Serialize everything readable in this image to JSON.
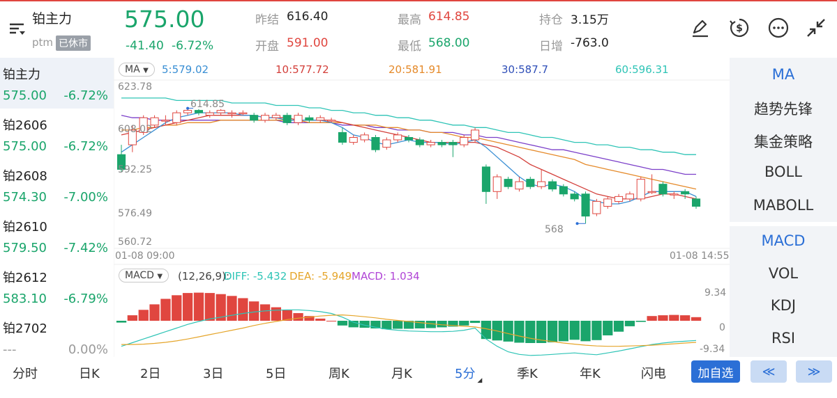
{
  "header": {
    "title": "铂主力",
    "sub": "ptm",
    "status_badge": "已休市",
    "price": "575.00",
    "change": "-41.40",
    "change_pct": "-6.72%",
    "stats": {
      "prev_close_label": "昨结",
      "prev_close": "616.40",
      "open_label": "开盘",
      "open": "591.00",
      "high_label": "最高",
      "high": "614.85",
      "low_label": "最低",
      "low": "568.00",
      "position_label": "持仓",
      "position": "3.15万",
      "daily_inc_label": "日增",
      "daily_inc": "-763.0"
    }
  },
  "contracts": [
    {
      "name": "铂主力",
      "price": "575.00",
      "pct": "-6.72%",
      "color": "green"
    },
    {
      "name": "铂2606",
      "price": "575.00",
      "pct": "-6.72%",
      "color": "green"
    },
    {
      "name": "铂2608",
      "price": "574.30",
      "pct": "-7.00%",
      "color": "green"
    },
    {
      "name": "铂2610",
      "price": "579.50",
      "pct": "-7.42%",
      "color": "green"
    },
    {
      "name": "铂2612",
      "price": "583.10",
      "pct": "-6.79%",
      "color": "green"
    },
    {
      "name": "铂2702",
      "price": "---",
      "pct": "0.00%",
      "color": "grey"
    }
  ],
  "ma_bar": {
    "selector": "MA",
    "ma5": "5:579.02",
    "ma10": "10:577.72",
    "ma20": "20:581.91",
    "ma30": "30:587.7",
    "ma60": "60:596.31"
  },
  "price_axis": [
    "623.78",
    "608.02",
    "592.25",
    "576.49",
    "560.72"
  ],
  "high_marker": "614.85",
  "low_marker": "568",
  "time_start": "01-08 09:00",
  "time_end": "01-08 14:55",
  "macd_bar": {
    "selector": "MACD",
    "params": "(12,26,9):",
    "diff": "DIFF: -5.432",
    "dea": "DEA: -5.949",
    "macd": "MACD: 1.034"
  },
  "macd_axis": [
    "9.34",
    "0",
    "-9.34"
  ],
  "indicators_main": [
    "MA",
    "趋势先锋",
    "集金策略",
    "BOLL",
    "MABOLL"
  ],
  "indicators_sub": [
    "MACD",
    "VOL",
    "KDJ",
    "RSI"
  ],
  "tabs": [
    "分时",
    "日K",
    "2日",
    "3日",
    "5日",
    "周K",
    "月K",
    "5分",
    "季K",
    "年K",
    "闪电"
  ],
  "add_watch": "加自选",
  "nav_prev": "≪",
  "nav_next": "≫",
  "colors": {
    "up": "#e0463f",
    "down": "#1aa56b",
    "accent": "#2b6fd6"
  },
  "chart_data": {
    "type": "candlestick",
    "ylim": [
      560.72,
      623.78
    ],
    "candles": [
      {
        "o": 596,
        "c": 590,
        "h": 600,
        "l": 589
      },
      {
        "o": 600,
        "c": 606,
        "h": 608,
        "l": 597
      },
      {
        "o": 605,
        "c": 611,
        "h": 612,
        "l": 604
      },
      {
        "o": 608,
        "c": 611,
        "h": 612,
        "l": 607
      },
      {
        "o": 610,
        "c": 610,
        "h": 612,
        "l": 608
      },
      {
        "o": 609,
        "c": 613,
        "h": 614,
        "l": 608
      },
      {
        "o": 613,
        "c": 614,
        "h": 614.85,
        "l": 612
      },
      {
        "o": 614,
        "c": 613,
        "h": 614.5,
        "l": 612
      },
      {
        "o": 612,
        "c": 613,
        "h": 614,
        "l": 611
      },
      {
        "o": 613,
        "c": 614,
        "h": 614.5,
        "l": 612
      },
      {
        "o": 613,
        "c": 613,
        "h": 614,
        "l": 611
      },
      {
        "o": 613,
        "c": 613,
        "h": 614,
        "l": 612
      },
      {
        "o": 612,
        "c": 610,
        "h": 613,
        "l": 609
      },
      {
        "o": 610,
        "c": 612,
        "h": 613,
        "l": 609
      },
      {
        "o": 611,
        "c": 612,
        "h": 613,
        "l": 610
      },
      {
        "o": 612,
        "c": 609,
        "h": 613,
        "l": 608
      },
      {
        "o": 609,
        "c": 612,
        "h": 613,
        "l": 608
      },
      {
        "o": 611,
        "c": 610,
        "h": 612,
        "l": 609
      },
      {
        "o": 610,
        "c": 611,
        "h": 612,
        "l": 609
      },
      {
        "o": 610,
        "c": 610,
        "h": 611,
        "l": 609
      },
      {
        "o": 605,
        "c": 601,
        "h": 607,
        "l": 600
      },
      {
        "o": 601,
        "c": 603,
        "h": 604,
        "l": 600
      },
      {
        "o": 602,
        "c": 604,
        "h": 605,
        "l": 601
      },
      {
        "o": 603,
        "c": 598,
        "h": 604,
        "l": 597
      },
      {
        "o": 599,
        "c": 602,
        "h": 603,
        "l": 598
      },
      {
        "o": 602,
        "c": 604,
        "h": 605,
        "l": 601
      },
      {
        "o": 603,
        "c": 602,
        "h": 604,
        "l": 601
      },
      {
        "o": 602,
        "c": 600,
        "h": 603,
        "l": 599
      },
      {
        "o": 600,
        "c": 601,
        "h": 602,
        "l": 599
      },
      {
        "o": 601,
        "c": 600,
        "h": 602,
        "l": 599
      },
      {
        "o": 601,
        "c": 600,
        "h": 602,
        "l": 595
      },
      {
        "o": 600,
        "c": 603,
        "h": 604,
        "l": 599
      },
      {
        "o": 602,
        "c": 606,
        "h": 607,
        "l": 601
      },
      {
        "o": 591,
        "c": 581,
        "h": 592,
        "l": 576
      },
      {
        "o": 581,
        "c": 587,
        "h": 588,
        "l": 578
      },
      {
        "o": 586,
        "c": 583,
        "h": 587,
        "l": 582
      },
      {
        "o": 582,
        "c": 585,
        "h": 587,
        "l": 581
      },
      {
        "o": 586,
        "c": 583,
        "h": 587,
        "l": 582
      },
      {
        "o": 583,
        "c": 585,
        "h": 590,
        "l": 582
      },
      {
        "o": 585,
        "c": 582,
        "h": 586,
        "l": 581
      },
      {
        "o": 583,
        "c": 580,
        "h": 584,
        "l": 579
      },
      {
        "o": 580,
        "c": 578,
        "h": 581,
        "l": 577
      },
      {
        "o": 580,
        "c": 571,
        "h": 581,
        "l": 568
      },
      {
        "o": 572,
        "c": 577,
        "h": 578,
        "l": 571
      },
      {
        "o": 575,
        "c": 578,
        "h": 579,
        "l": 574
      },
      {
        "o": 577,
        "c": 579,
        "h": 580,
        "l": 576
      },
      {
        "o": 578,
        "c": 580,
        "h": 581,
        "l": 577
      },
      {
        "o": 578,
        "c": 586,
        "h": 587,
        "l": 577
      },
      {
        "o": 581,
        "c": 581,
        "h": 588,
        "l": 580
      },
      {
        "o": 584,
        "c": 580,
        "h": 585,
        "l": 579
      },
      {
        "o": 580,
        "c": 580,
        "h": 581,
        "l": 578
      },
      {
        "o": 581,
        "c": 580,
        "h": 582,
        "l": 578
      },
      {
        "o": 578,
        "c": 575,
        "h": 579,
        "l": 574
      }
    ],
    "ma5": [
      597,
      600,
      603,
      606,
      609,
      611,
      612,
      613,
      613,
      613,
      613,
      612,
      612,
      611,
      611,
      610,
      610,
      610,
      610,
      609,
      607,
      604,
      603,
      601,
      600,
      601,
      602,
      601,
      601,
      601,
      600,
      601,
      602,
      599,
      595,
      591,
      587,
      584,
      583,
      584,
      583,
      581,
      578,
      577,
      576,
      576,
      577,
      579,
      581,
      581,
      581,
      581,
      579
    ],
    "ma10": [
      604,
      605,
      606,
      607,
      608,
      609,
      610,
      611,
      612,
      612,
      612,
      612,
      612,
      611,
      611,
      611,
      610,
      610,
      610,
      610,
      609,
      608,
      607,
      606,
      605,
      604,
      603,
      602,
      601,
      601,
      601,
      601,
      601,
      600,
      599,
      597,
      595,
      592,
      590,
      588,
      586,
      584,
      582,
      580,
      579,
      578,
      578,
      578,
      579,
      580,
      580,
      579,
      578
    ],
    "ma20": [
      606,
      606,
      607,
      607,
      608,
      608,
      609,
      609,
      609,
      610,
      610,
      610,
      610,
      610,
      610,
      610,
      610,
      609,
      609,
      609,
      609,
      608,
      608,
      608,
      607,
      607,
      606,
      606,
      605,
      605,
      604,
      603,
      603,
      602,
      601,
      600,
      599,
      598,
      597,
      596,
      595,
      594,
      592,
      591,
      590,
      589,
      588,
      587,
      586,
      585,
      584,
      583,
      582
    ],
    "ma30": [
      612,
      611,
      611,
      610,
      610,
      610,
      610,
      610,
      610,
      610,
      610,
      610,
      610,
      610,
      610,
      609,
      609,
      609,
      609,
      609,
      608,
      608,
      608,
      607,
      607,
      606,
      606,
      606,
      605,
      605,
      605,
      604,
      604,
      603,
      603,
      602,
      601,
      600,
      599,
      598,
      598,
      597,
      596,
      595,
      594,
      593,
      592,
      591,
      590,
      590,
      589,
      588,
      588
    ],
    "ma60": [
      619,
      619,
      619,
      619,
      619,
      618,
      618,
      618,
      618,
      618,
      617,
      617,
      617,
      617,
      616,
      616,
      616,
      615,
      615,
      614,
      614,
      613,
      613,
      612,
      612,
      611,
      611,
      610,
      610,
      609,
      608,
      608,
      607,
      607,
      606,
      605,
      605,
      604,
      603,
      603,
      602,
      601,
      601,
      600,
      600,
      599,
      599,
      598,
      598,
      597,
      597,
      596,
      596
    ],
    "macd_hist": [
      -0.5,
      1.5,
      3,
      4.5,
      6,
      7,
      7.6,
      7.7,
      7.6,
      7.3,
      6.8,
      6.2,
      5.3,
      4.5,
      3.7,
      2.9,
      2.1,
      1.3,
      0.6,
      0,
      -1.3,
      -1.8,
      -1.9,
      -2.1,
      -2.3,
      -2.2,
      -2.2,
      -2.1,
      -2,
      -1.8,
      -1.6,
      -1.3,
      -0.6,
      -5,
      -5.4,
      -5.7,
      -6,
      -6.1,
      -6.1,
      -5.9,
      -5.6,
      -5.2,
      -5.6,
      -5.3,
      -4,
      -3,
      -1.5,
      -0.3,
      1.3,
      1.5,
      1.6,
      1.5,
      1.0
    ],
    "diff": [
      -7,
      -6,
      -5,
      -4,
      -3,
      -2,
      -1,
      -0.2,
      0.5,
      1,
      1.5,
      2,
      2.4,
      2.7,
      2.9,
      3,
      3,
      2.8,
      2.5,
      2,
      1,
      -0.4,
      -1.2,
      -1.8,
      -2.3,
      -2.6,
      -2.8,
      -2.9,
      -3,
      -3,
      -2.9,
      -2.6,
      -2,
      -5,
      -7,
      -8.5,
      -9.2,
      -9.5,
      -9.4,
      -9.2,
      -9,
      -8.8,
      -9.1,
      -9.3,
      -8.8,
      -8.3,
      -7.7,
      -7.1,
      -6.5,
      -6.1,
      -5.8,
      -5.6,
      -5.4
    ],
    "dea": [
      -6.5,
      -6.5,
      -6.4,
      -6.2,
      -5.9,
      -5.5,
      -5,
      -4.4,
      -3.8,
      -3.2,
      -2.6,
      -2,
      -1.3,
      -0.7,
      -0.2,
      0.3,
      0.7,
      1,
      1.3,
      1.5,
      1.6,
      1.4,
      1.1,
      0.8,
      0.4,
      0.1,
      -0.2,
      -0.5,
      -0.8,
      -1.1,
      -1.3,
      -1.5,
      -1.7,
      -2.2,
      -2.8,
      -3.5,
      -4.2,
      -4.8,
      -5.3,
      -5.7,
      -6.1,
      -6.4,
      -6.7,
      -6.9,
      -7,
      -7,
      -6.9,
      -6.8,
      -6.7,
      -6.5,
      -6.3,
      -6.1,
      -5.9
    ]
  }
}
